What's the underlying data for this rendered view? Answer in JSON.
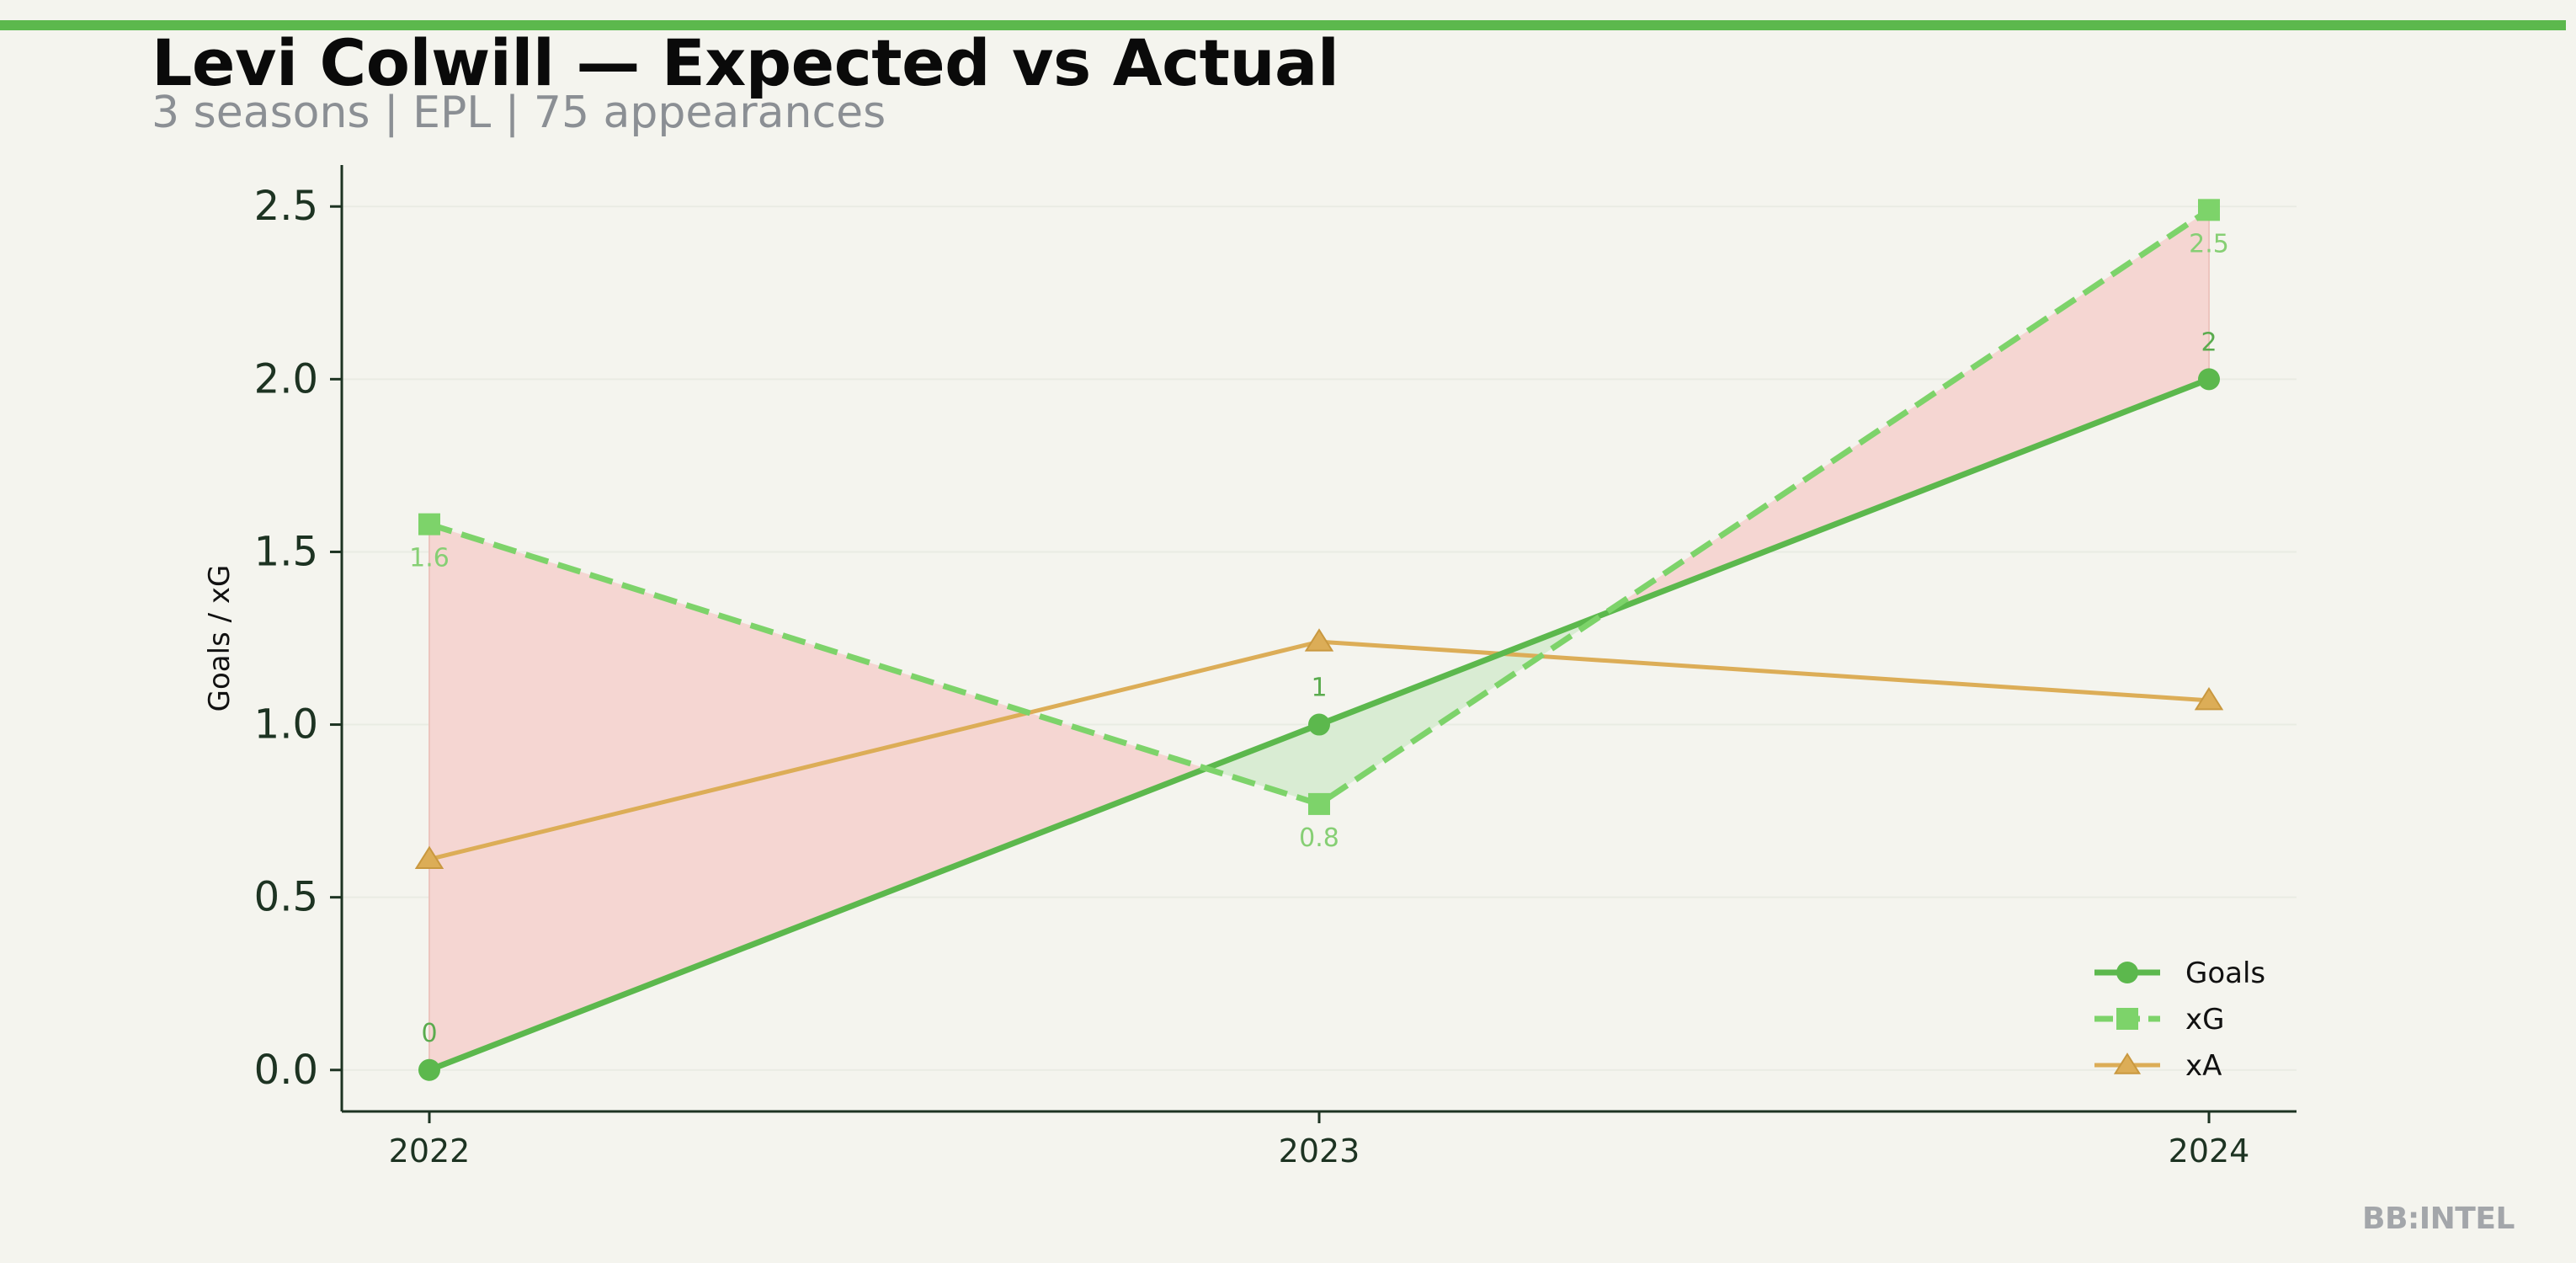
{
  "header": {
    "title": "Levi Colwill — Expected vs Actual",
    "subtitle": "3 seasons | EPL | 75 appearances"
  },
  "footer": {
    "brand": "BB:INTEL"
  },
  "colors": {
    "accent": "#5cb84d",
    "goals": "#5cb84d",
    "xg": "#7dd36a",
    "xa": "#dcad57",
    "underperform_fill": "#f5d6d2",
    "overperform_fill": "#d9ecd3",
    "axis": "#1d3322"
  },
  "chart_data": {
    "type": "line",
    "title": "Levi Colwill — Expected vs Actual",
    "subtitle": "3 seasons | EPL | 75 appearances",
    "xlabel": "",
    "ylabel": "Goals / xG",
    "categories": [
      "2022",
      "2023",
      "2024"
    ],
    "ylim": [
      -0.12,
      2.62
    ],
    "yticks": [
      "0.0",
      "0.5",
      "1.0",
      "1.5",
      "2.0",
      "2.5"
    ],
    "ytick_values": [
      0,
      0.5,
      1.0,
      1.5,
      2.0,
      2.5
    ],
    "grid": "horizontal, faint",
    "legend_position": "bottom-right",
    "series": [
      {
        "name": "Goals",
        "values": [
          0,
          1,
          2
        ],
        "labels": [
          "0",
          "1",
          "2"
        ],
        "marker": "circle",
        "style": "solid"
      },
      {
        "name": "xG",
        "values": [
          1.58,
          0.77,
          2.49
        ],
        "labels": [
          "1.6",
          "0.8",
          "2.5"
        ],
        "marker": "square",
        "style": "dashed"
      },
      {
        "name": "xA",
        "values": [
          0.61,
          1.24,
          1.07
        ],
        "marker": "triangle",
        "style": "solid"
      }
    ]
  }
}
